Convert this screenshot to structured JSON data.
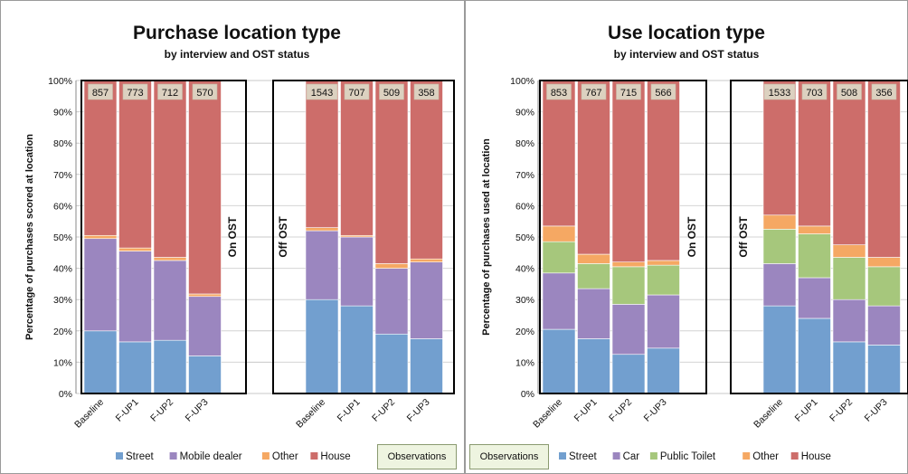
{
  "colors": {
    "street": "#729fcf",
    "mobile_dealer": "#9b86bf",
    "car": "#9b86bf",
    "public_toilet": "#a6c77c",
    "other": "#f5a863",
    "house": "#cd6d6a",
    "count_label_bg": "#dcd1c0"
  },
  "observations_label": "Observations",
  "chart_data": [
    {
      "type": "bar",
      "stacked": true,
      "title": "Purchase location type",
      "subtitle": "by interview and OST status",
      "xlabel": "",
      "ylabel": "Percentage of purchases scored at location",
      "ylim": [
        0,
        100
      ],
      "yticks": [
        "0%",
        "10%",
        "20%",
        "30%",
        "40%",
        "50%",
        "60%",
        "70%",
        "80%",
        "90%",
        "100%"
      ],
      "grid": true,
      "legend_position": "bottom",
      "groups": [
        {
          "label": "On OST",
          "categories": [
            "Baseline",
            "F-UP1",
            "F-UP2",
            "F-UP3"
          ],
          "counts": [
            "857",
            "773",
            "712",
            "570"
          ],
          "series": [
            {
              "name": "Street",
              "color": "#729fcf",
              "values": [
                20,
                16.5,
                17,
                12
              ]
            },
            {
              "name": "Mobile dealer",
              "color": "#9b86bf",
              "values": [
                29.5,
                29,
                25.5,
                19
              ]
            },
            {
              "name": "Other",
              "color": "#f5a863",
              "values": [
                1,
                1,
                1,
                0.8
              ]
            },
            {
              "name": "House",
              "color": "#cd6d6a",
              "values": [
                49.5,
                53.5,
                56.5,
                68.2
              ]
            }
          ]
        },
        {
          "label": "Off OST",
          "categories": [
            "Baseline",
            "F-UP1",
            "F-UP2",
            "F-UP3"
          ],
          "counts": [
            "1543",
            "707",
            "509",
            "358"
          ],
          "series": [
            {
              "name": "Street",
              "color": "#729fcf",
              "values": [
                30,
                28,
                19,
                17.5
              ]
            },
            {
              "name": "Mobile dealer",
              "color": "#9b86bf",
              "values": [
                22,
                22,
                21,
                24.5
              ]
            },
            {
              "name": "Other",
              "color": "#f5a863",
              "values": [
                1,
                0.5,
                1.5,
                1
              ]
            },
            {
              "name": "House",
              "color": "#cd6d6a",
              "values": [
                47,
                49.5,
                58.5,
                57
              ]
            }
          ]
        }
      ]
    },
    {
      "type": "bar",
      "stacked": true,
      "title": "Use location type",
      "subtitle": "by interview and OST status",
      "xlabel": "",
      "ylabel": "Percentage of purchases used at location",
      "ylim": [
        0,
        100
      ],
      "yticks": [
        "0%",
        "10%",
        "20%",
        "30%",
        "40%",
        "50%",
        "60%",
        "70%",
        "80%",
        "90%",
        "100%"
      ],
      "grid": true,
      "legend_position": "bottom",
      "groups": [
        {
          "label": "On OST",
          "categories": [
            "Baseline",
            "F-UP1",
            "F-UP2",
            "F-UP3"
          ],
          "counts": [
            "853",
            "767",
            "715",
            "566"
          ],
          "series": [
            {
              "name": "Street",
              "color": "#729fcf",
              "values": [
                20.5,
                17.5,
                12.5,
                14.5
              ]
            },
            {
              "name": "Car",
              "color": "#9b86bf",
              "values": [
                18,
                16,
                16,
                17
              ]
            },
            {
              "name": "Public Toilet",
              "color": "#a6c77c",
              "values": [
                10,
                8,
                12,
                9.5
              ]
            },
            {
              "name": "Other",
              "color": "#f5a863",
              "values": [
                5,
                3,
                1.5,
                1.5
              ]
            },
            {
              "name": "House",
              "color": "#cd6d6a",
              "values": [
                46.5,
                55.5,
                58,
                57.5
              ]
            }
          ]
        },
        {
          "label": "Off OST",
          "categories": [
            "Baseline",
            "F-UP1",
            "F-UP2",
            "F-UP3"
          ],
          "counts": [
            "1533",
            "703",
            "508",
            "356"
          ],
          "series": [
            {
              "name": "Street",
              "color": "#729fcf",
              "values": [
                28,
                24,
                16.5,
                15.5
              ]
            },
            {
              "name": "Car",
              "color": "#9b86bf",
              "values": [
                13.5,
                13,
                13.5,
                12.5
              ]
            },
            {
              "name": "Public Toilet",
              "color": "#a6c77c",
              "values": [
                11,
                14,
                13.5,
                12.5
              ]
            },
            {
              "name": "Other",
              "color": "#f5a863",
              "values": [
                4.5,
                2.5,
                4,
                3
              ]
            },
            {
              "name": "House",
              "color": "#cd6d6a",
              "values": [
                43,
                46.5,
                52.5,
                56.5
              ]
            }
          ]
        }
      ]
    }
  ]
}
